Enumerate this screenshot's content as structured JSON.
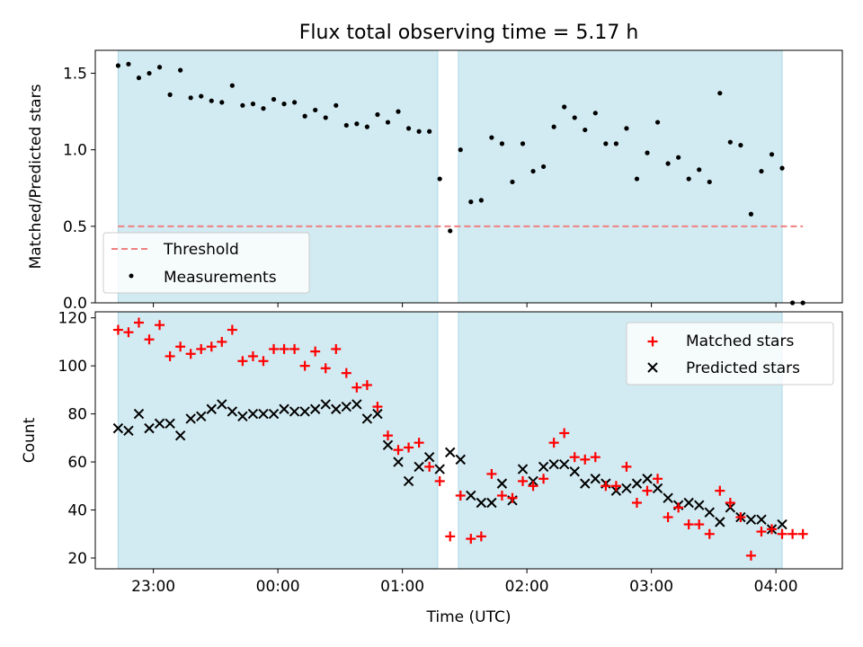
{
  "chart_data": [
    {
      "type": "scatter",
      "title": "Flux total observing time = 5.17 h",
      "ylabel": "Matched/Predicted stars",
      "xlim": [
        "22:32",
        "04:32"
      ],
      "ylim": [
        0,
        1.65
      ],
      "yticks": [
        0.0,
        0.5,
        1.0,
        1.5
      ],
      "ytick_labels": [
        "0.0",
        "0.5",
        "1.0",
        "1.5"
      ],
      "shaded_intervals": [
        [
          "22:43",
          "01:17"
        ],
        [
          "01:27",
          "04:03"
        ]
      ],
      "shade_color": "#add8e6",
      "legend_position": "lower-left",
      "threshold": {
        "name": "Threshold",
        "y": 0.5,
        "x_range": [
          "22:43",
          "04:13"
        ],
        "color": "#f08080"
      },
      "series": [
        {
          "name": "Measurements",
          "color": "#000000",
          "x": [
            "22:43",
            "22:48",
            "22:53",
            "22:58",
            "23:03",
            "23:08",
            "23:13",
            "23:18",
            "23:23",
            "23:28",
            "23:33",
            "23:38",
            "23:43",
            "23:48",
            "23:53",
            "23:58",
            "00:03",
            "00:08",
            "00:13",
            "00:18",
            "00:23",
            "00:28",
            "00:33",
            "00:38",
            "00:43",
            "00:48",
            "00:53",
            "00:58",
            "01:03",
            "01:08",
            "01:13",
            "01:18",
            "01:23",
            "01:28",
            "01:33",
            "01:38",
            "01:43",
            "01:48",
            "01:53",
            "01:58",
            "02:03",
            "02:08",
            "02:13",
            "02:18",
            "02:23",
            "02:28",
            "02:33",
            "02:38",
            "02:43",
            "02:48",
            "02:53",
            "02:58",
            "03:03",
            "03:08",
            "03:13",
            "03:18",
            "03:23",
            "03:28",
            "03:33",
            "03:38",
            "03:43",
            "03:48",
            "03:53",
            "03:58",
            "04:03",
            "04:08",
            "04:13"
          ],
          "y": [
            1.55,
            1.56,
            1.47,
            1.5,
            1.54,
            1.36,
            1.52,
            1.34,
            1.35,
            1.32,
            1.31,
            1.42,
            1.29,
            1.3,
            1.27,
            1.33,
            1.3,
            1.31,
            1.22,
            1.26,
            1.21,
            1.29,
            1.16,
            1.17,
            1.15,
            1.23,
            1.18,
            1.25,
            1.14,
            1.12,
            1.12,
            0.81,
            0.47,
            1.0,
            0.66,
            0.67,
            1.08,
            1.04,
            0.79,
            1.04,
            0.86,
            0.89,
            1.15,
            1.28,
            1.21,
            1.13,
            1.24,
            1.04,
            1.04,
            1.14,
            0.81,
            0.98,
            1.18,
            0.91,
            0.95,
            0.81,
            0.87,
            0.79,
            1.37,
            1.05,
            1.03,
            0.58,
            0.86,
            0.97,
            0.88,
            0.0,
            0.0
          ]
        }
      ]
    },
    {
      "type": "scatter",
      "xlabel": "Time (UTC)",
      "ylabel": "Count",
      "xlim": [
        "22:32",
        "04:32"
      ],
      "ylim": [
        15.5,
        122.5
      ],
      "yticks": [
        20,
        40,
        60,
        80,
        100,
        120
      ],
      "ytick_labels": [
        "20",
        "40",
        "60",
        "80",
        "100",
        "120"
      ],
      "xticks": [
        "23:00",
        "00:00",
        "01:00",
        "02:00",
        "03:00",
        "04:00"
      ],
      "xtick_labels": [
        "23:00",
        "00:00",
        "01:00",
        "02:00",
        "03:00",
        "04:00"
      ],
      "shaded_intervals": [
        [
          "22:43",
          "01:17"
        ],
        [
          "01:27",
          "04:03"
        ]
      ],
      "shade_color": "#add8e6",
      "legend_position": "top-right",
      "series": [
        {
          "name": "Matched stars",
          "marker": "plus",
          "color": "#ff0000",
          "x": [
            "22:43",
            "22:48",
            "22:53",
            "22:58",
            "23:03",
            "23:08",
            "23:13",
            "23:18",
            "23:23",
            "23:28",
            "23:33",
            "23:38",
            "23:43",
            "23:48",
            "23:53",
            "23:58",
            "00:03",
            "00:08",
            "00:13",
            "00:18",
            "00:23",
            "00:28",
            "00:33",
            "00:38",
            "00:43",
            "00:48",
            "00:53",
            "00:58",
            "01:03",
            "01:08",
            "01:13",
            "01:18",
            "01:23",
            "01:28",
            "01:33",
            "01:38",
            "01:43",
            "01:48",
            "01:53",
            "01:58",
            "02:03",
            "02:08",
            "02:13",
            "02:18",
            "02:23",
            "02:28",
            "02:33",
            "02:38",
            "02:43",
            "02:48",
            "02:53",
            "02:58",
            "03:03",
            "03:08",
            "03:13",
            "03:18",
            "03:23",
            "03:28",
            "03:33",
            "03:38",
            "03:43",
            "03:48",
            "03:53",
            "03:58",
            "04:03",
            "04:08",
            "04:13"
          ],
          "y": [
            115,
            114,
            118,
            111,
            117,
            104,
            108,
            105,
            107,
            108,
            110,
            115,
            102,
            104,
            102,
            107,
            107,
            107,
            100,
            106,
            99,
            107,
            97,
            91,
            92,
            83,
            71,
            65,
            66,
            68,
            58,
            52,
            29,
            46,
            28,
            29,
            55,
            46,
            45,
            52,
            50,
            53,
            68,
            72,
            62,
            61,
            62,
            50,
            50,
            58,
            43,
            48,
            53,
            37,
            41,
            34,
            34,
            30,
            48,
            43,
            37,
            21,
            31,
            32,
            30,
            30,
            30
          ]
        },
        {
          "name": "Predicted stars",
          "marker": "x",
          "color": "#000000",
          "x": [
            "22:43",
            "22:48",
            "22:53",
            "22:58",
            "23:03",
            "23:08",
            "23:13",
            "23:18",
            "23:23",
            "23:28",
            "23:33",
            "23:38",
            "23:43",
            "23:48",
            "23:53",
            "23:58",
            "00:03",
            "00:08",
            "00:13",
            "00:18",
            "00:23",
            "00:28",
            "00:33",
            "00:38",
            "00:43",
            "00:48",
            "00:53",
            "00:58",
            "01:03",
            "01:08",
            "01:13",
            "01:18",
            "01:23",
            "01:28",
            "01:33",
            "01:38",
            "01:43",
            "01:48",
            "01:53",
            "01:58",
            "02:03",
            "02:08",
            "02:13",
            "02:18",
            "02:23",
            "02:28",
            "02:33",
            "02:38",
            "02:43",
            "02:48",
            "02:53",
            "02:58",
            "03:03",
            "03:08",
            "03:13",
            "03:18",
            "03:23",
            "03:28",
            "03:33",
            "03:38",
            "03:43",
            "03:48",
            "03:53",
            "03:58",
            "04:03"
          ],
          "y": [
            74,
            73,
            80,
            74,
            76,
            76,
            71,
            78,
            79,
            82,
            84,
            81,
            79,
            80,
            80,
            80,
            82,
            81,
            81,
            82,
            84,
            82,
            83,
            84,
            78,
            80,
            67,
            60,
            52,
            58,
            62,
            57,
            64,
            61,
            46,
            43,
            43,
            51,
            44,
            57,
            52,
            58,
            59,
            59,
            56,
            51,
            53,
            51,
            48,
            49,
            51,
            53,
            49,
            45,
            42,
            43,
            42,
            39,
            35,
            41,
            37,
            36,
            36,
            32,
            34
          ]
        }
      ]
    }
  ]
}
